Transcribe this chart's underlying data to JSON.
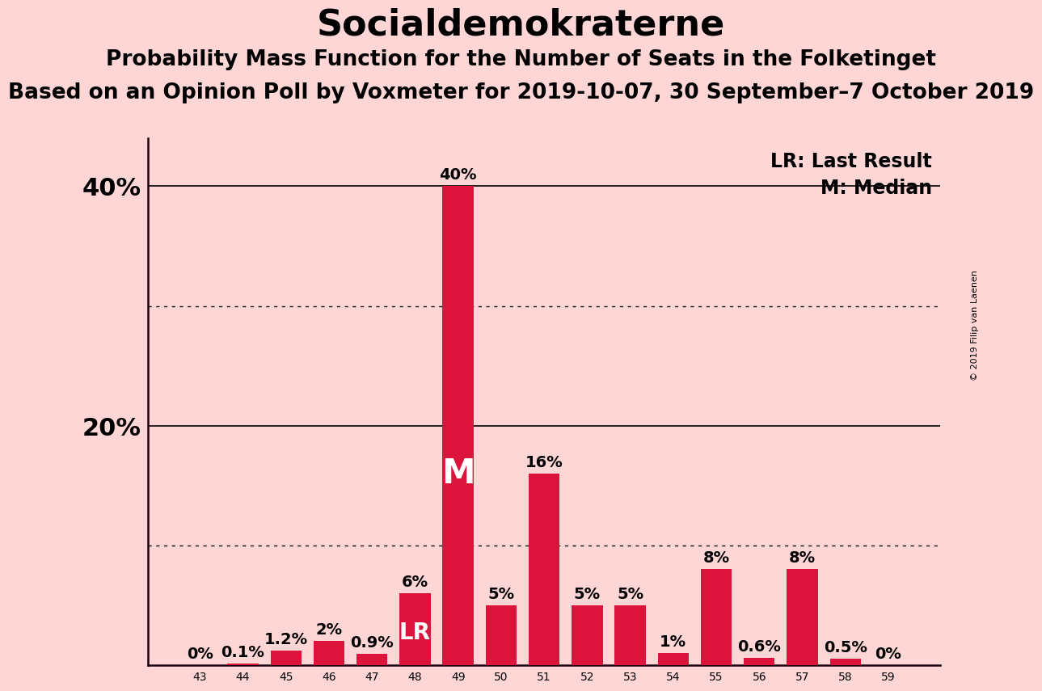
{
  "title": "Socialdemokraterne",
  "subtitle1": "Probability Mass Function for the Number of Seats in the Folketinget",
  "subtitle2": "Based on an Opinion Poll by Voxmeter for 2019-10-07, 30 September–7 October 2019",
  "copyright": "© 2019 Filip van Laenen",
  "seats": [
    43,
    44,
    45,
    46,
    47,
    48,
    49,
    50,
    51,
    52,
    53,
    54,
    55,
    56,
    57,
    58,
    59
  ],
  "probabilities": [
    0.0,
    0.1,
    1.2,
    2.0,
    0.9,
    6.0,
    40.0,
    5.0,
    16.0,
    5.0,
    5.0,
    1.0,
    8.0,
    0.6,
    8.0,
    0.5,
    0.0
  ],
  "bar_color": "#DC143C",
  "background_color": "#FFD6D6",
  "last_result_seat": 48,
  "median_seat": 49,
  "legend_lr": "LR: Last Result",
  "legend_m": "M: Median",
  "ylim": [
    0,
    44
  ],
  "ytick_labeled": [
    20,
    40
  ],
  "ytick_unlabeled": [
    10,
    30
  ],
  "dotted_lines": [
    10,
    30
  ],
  "solid_lines": [
    20,
    40
  ],
  "bar_label_fontsize": 14,
  "title_fontsize": 32,
  "subtitle1_fontsize": 19,
  "subtitle2_fontsize": 19,
  "axis_tick_fontsize": 22,
  "legend_fontsize": 17,
  "lr_label_fontsize": 20,
  "m_label_fontsize": 30
}
